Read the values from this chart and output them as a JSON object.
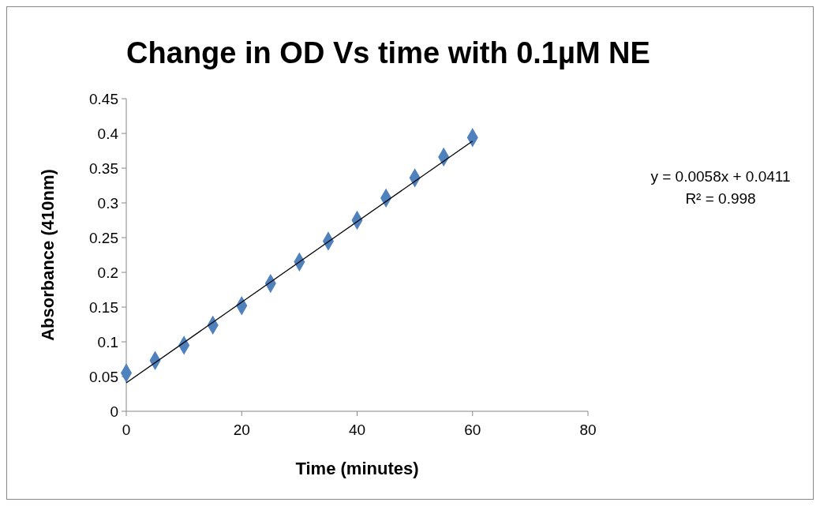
{
  "chart_data": {
    "type": "scatter",
    "title": "Change in OD Vs time with 0.1µM NE",
    "xlabel": "Time (minutes)",
    "ylabel": "Absorbance (410nm)",
    "xlim": [
      0,
      80
    ],
    "xticks": [
      0,
      20,
      40,
      60,
      80
    ],
    "ylim": [
      0,
      0.45
    ],
    "yticks": [
      0,
      0.05,
      0.1,
      0.15,
      0.2,
      0.25,
      0.3,
      0.35,
      0.4,
      0.45
    ],
    "grid": false,
    "marker": "diamond",
    "annotations": [
      "y = 0.0058x + 0.0411",
      "R² = 0.998"
    ],
    "series": [
      {
        "color": "#4f81bd",
        "x": [
          0,
          5,
          10,
          15,
          20,
          25,
          30,
          35,
          40,
          45,
          50,
          55,
          60
        ],
        "values": [
          0.055,
          0.073,
          0.095,
          0.124,
          0.152,
          0.184,
          0.215,
          0.245,
          0.275,
          0.307,
          0.336,
          0.366,
          0.394
        ]
      },
      {
        "type": "line",
        "marker": "none",
        "color": "#000000",
        "x": [
          0,
          60
        ],
        "values": [
          0.041,
          0.389
        ]
      }
    ]
  }
}
